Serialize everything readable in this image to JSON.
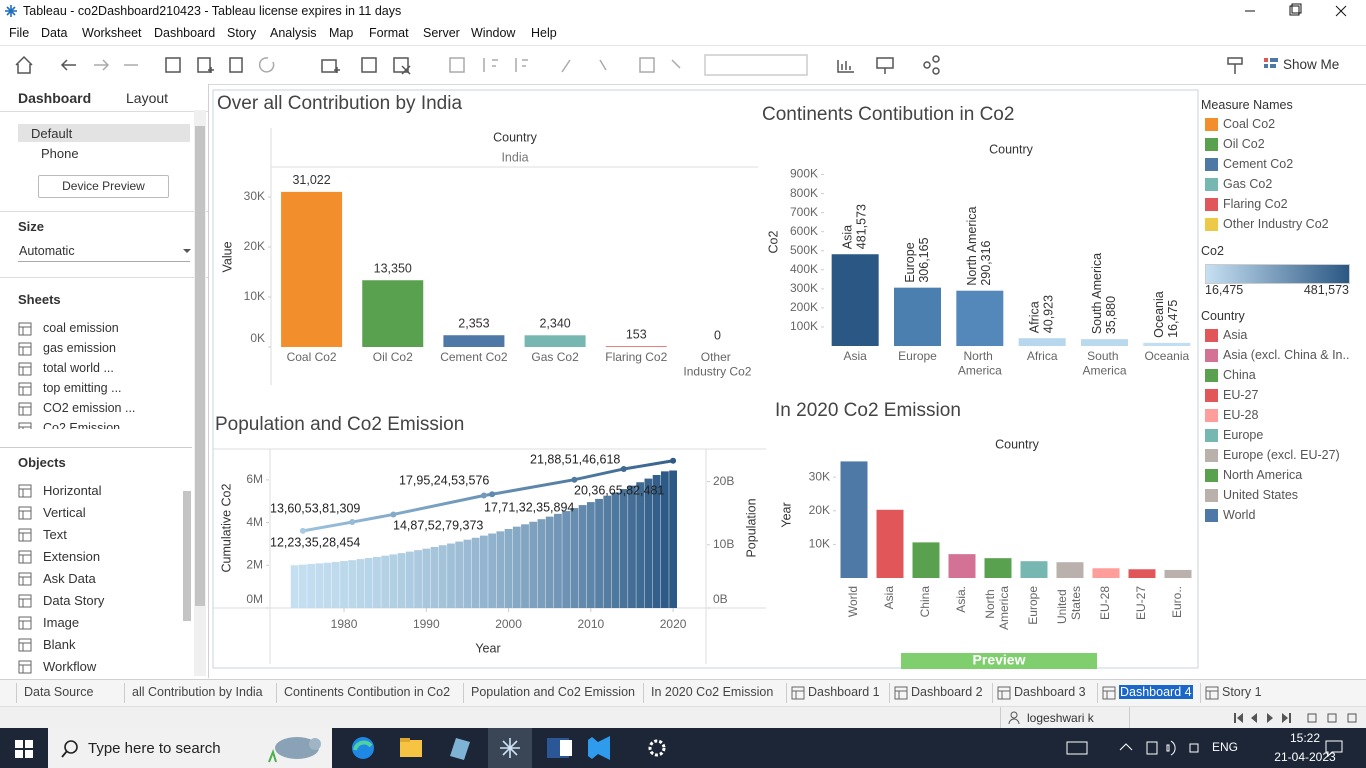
{
  "window": {
    "title": "Tableau - co2Dashboard210423 - Tableau license expires in 11 days"
  },
  "menu": [
    "File",
    "Data",
    "Worksheet",
    "Dashboard",
    "Story",
    "Analysis",
    "Map",
    "Format",
    "Server",
    "Window",
    "Help"
  ],
  "toolbar": {
    "show_me": "Show Me"
  },
  "side_panel": {
    "tabs": [
      "Dashboard",
      "Layout"
    ],
    "devices": [
      "Default",
      "Phone"
    ],
    "device_preview": "Device Preview",
    "size_title": "Size",
    "size_value": "Automatic",
    "sheets_title": "Sheets",
    "sheets": [
      "coal emission",
      "gas emission",
      "total world ...",
      "top emitting ...",
      "CO2 emission ...",
      "Co2 Emission"
    ],
    "objects_title": "Objects",
    "objects": [
      "Horizontal",
      "Vertical",
      "Text",
      "Extension",
      "Ask Data",
      "Data Story",
      "Image",
      "Blank",
      "Workflow"
    ]
  },
  "dashboard": {
    "charts": [
      {
        "type": "bar",
        "title": "Over all Contribution by India",
        "header": "Country",
        "subheader": "India",
        "y_label": "Value",
        "categories": [
          "Coal Co2",
          "Oil Co2",
          "Cement Co2",
          "Gas Co2",
          "Flaring Co2",
          "Other Industry Co2"
        ],
        "values": [
          31022,
          13350,
          2353,
          2340,
          153,
          0
        ],
        "value_labels": [
          "31,022",
          "13,350",
          "2,353",
          "2,340",
          "153",
          "0"
        ],
        "colors": [
          "#f28e2b",
          "#59a14f",
          "#4e79a7",
          "#76b7b2",
          "#e15759",
          "#edc948"
        ],
        "ylim": [
          0,
          36000
        ],
        "yticks": [
          {
            "value": 0,
            "label": "0K"
          },
          {
            "value": 10000,
            "label": "10K"
          },
          {
            "value": 20000,
            "label": "20K"
          },
          {
            "value": 30000,
            "label": "30K"
          }
        ]
      },
      {
        "type": "bar",
        "title": "Continents Contibution in Co2",
        "header": "Country",
        "y_label": "Co2",
        "categories": [
          "Asia",
          "Europe",
          "North America",
          "Africa",
          "South America",
          "Oceania"
        ],
        "values": [
          481573,
          306165,
          290316,
          40923,
          35880,
          16475
        ],
        "value_labels": [
          "481,573",
          "306,165",
          "290,316",
          "40,923",
          "35,880",
          "16,475"
        ],
        "colors": [
          "#2a5783",
          "#4a7fb0",
          "#5488bb",
          "#b6d7ee",
          "#b9d9ef",
          "#c3def1"
        ],
        "ylim": [
          0,
          950000
        ],
        "yticks": [
          {
            "value": 100000,
            "label": "100K"
          },
          {
            "value": 200000,
            "label": "200K"
          },
          {
            "value": 300000,
            "label": "300K"
          },
          {
            "value": 400000,
            "label": "400K"
          },
          {
            "value": 500000,
            "label": "500K"
          },
          {
            "value": 600000,
            "label": "600K"
          },
          {
            "value": 700000,
            "label": "700K"
          },
          {
            "value": 800000,
            "label": "800K"
          },
          {
            "value": 900000,
            "label": "900K"
          }
        ]
      },
      {
        "type": "bar_line",
        "title": "Population and Co2 Emission",
        "x_label": "Year",
        "y_label": "Cumulative Co2",
        "y2_label": "Population",
        "x": [
          1974,
          1975,
          1976,
          1977,
          1978,
          1979,
          1980,
          1981,
          1982,
          1983,
          1984,
          1985,
          1986,
          1987,
          1988,
          1989,
          1990,
          1991,
          1992,
          1993,
          1994,
          1995,
          1996,
          1997,
          1998,
          1999,
          2000,
          2001,
          2002,
          2003,
          2004,
          2005,
          2006,
          2007,
          2008,
          2009,
          2010,
          2011,
          2012,
          2013,
          2014,
          2015,
          2016,
          2017,
          2018,
          2019,
          2020
        ],
        "values": [
          2.0,
          2.03,
          2.06,
          2.09,
          2.12,
          2.16,
          2.2,
          2.24,
          2.29,
          2.34,
          2.39,
          2.45,
          2.51,
          2.57,
          2.64,
          2.71,
          2.78,
          2.86,
          2.94,
          3.02,
          3.11,
          3.2,
          3.29,
          3.39,
          3.49,
          3.59,
          3.7,
          3.81,
          3.92,
          4.04,
          4.16,
          4.28,
          4.41,
          4.54,
          4.68,
          4.82,
          4.96,
          5.11,
          5.26,
          5.41,
          5.57,
          5.73,
          5.89,
          6.06,
          6.23,
          6.4,
          6.44
        ],
        "color_range": [
          "#c3dff0",
          "#2c5985"
        ],
        "line": {
          "axis": "y2",
          "x": [
            1975,
            1981,
            1986,
            1997,
            1998,
            2008,
            2014,
            2020
          ],
          "values": [
            12.2,
            13.6,
            14.8,
            17.8,
            18.0,
            20.3,
            22.0,
            23.3
          ],
          "color_range": [
            "#a6cbe3",
            "#2c5985"
          ]
        },
        "annotations": [
          "13,60,53,81,309",
          "12,23,35,28,454",
          "17,95,24,53,576",
          "14,87,52,79,373",
          "21,88,51,46,618",
          "17,71,32,35,894",
          "20,36,65,82,481"
        ],
        "xlim": [
          1971,
          2024
        ],
        "xticks": [
          1980,
          1990,
          2000,
          2010,
          2020
        ],
        "ylim": [
          0,
          7.4
        ],
        "yticks": [
          {
            "value": 0,
            "label": "0M"
          },
          {
            "value": 2,
            "label": "2M"
          },
          {
            "value": 4,
            "label": "4M"
          },
          {
            "value": 6,
            "label": "6M"
          }
        ],
        "y2lim": [
          0,
          25
        ],
        "y2ticks": [
          {
            "value": 0,
            "label": "0B"
          },
          {
            "value": 10,
            "label": "10B"
          },
          {
            "value": 20,
            "label": "20B"
          }
        ]
      },
      {
        "type": "bar",
        "title": "In 2020 Co2 Emission",
        "header": "Country",
        "y_label": "Year",
        "categories": [
          "World",
          "Asia",
          "China",
          "Asia.",
          "North America",
          "Europe",
          "United States",
          "EU-28",
          "EU-27",
          "Euro.."
        ],
        "values": [
          34700,
          20300,
          10600,
          7100,
          5900,
          5000,
          4700,
          2900,
          2600,
          2400
        ],
        "colors": [
          "#4e79a7",
          "#e15759",
          "#59a14f",
          "#d37295",
          "#59a14f",
          "#76b7b2",
          "#bab0ac",
          "#ff9d9a",
          "#e15759",
          "#bab0ac"
        ],
        "ylim": [
          0,
          37500
        ],
        "yticks": [
          {
            "value": 10000,
            "label": "10K"
          },
          {
            "value": 20000,
            "label": "20K"
          },
          {
            "value": 30000,
            "label": "30K"
          }
        ]
      }
    ],
    "preview": "Preview"
  },
  "legend": {
    "measure_title": "Measure Names",
    "measures": [
      {
        "name": "Coal Co2",
        "color": "#f28e2b"
      },
      {
        "name": "Oil Co2",
        "color": "#59a14f"
      },
      {
        "name": "Cement Co2",
        "color": "#4e79a7"
      },
      {
        "name": "Gas Co2",
        "color": "#76b7b2"
      },
      {
        "name": "Flaring Co2",
        "color": "#e15759"
      },
      {
        "name": "Other Industry Co2",
        "color": "#edc948"
      }
    ],
    "co2_title": "Co2",
    "co2_colors": [
      "#c6e0f2",
      "#2a5783"
    ],
    "co2_labels": [
      "16,475",
      "481,573"
    ],
    "country_title": "Country",
    "countries": [
      {
        "name": "Asia",
        "color": "#e15759"
      },
      {
        "name": "Asia (excl. China & In..",
        "color": "#d37295"
      },
      {
        "name": "China",
        "color": "#59a14f"
      },
      {
        "name": "EU-27",
        "color": "#e15759"
      },
      {
        "name": "EU-28",
        "color": "#ff9d9a"
      },
      {
        "name": "Europe",
        "color": "#76b7b2"
      },
      {
        "name": "Europe (excl. EU-27)",
        "color": "#bab0ac"
      },
      {
        "name": "North America",
        "color": "#59a14f"
      },
      {
        "name": "United States",
        "color": "#bab0ac"
      },
      {
        "name": "World",
        "color": "#4e79a7"
      }
    ]
  },
  "sheet_tabs": [
    "Data Source",
    "all Contribution by India",
    "Continents Contibution in Co2",
    "Population and Co2 Emission",
    "In 2020 Co2 Emission",
    "Dashboard 1",
    "Dashboard 2",
    "Dashboard 3",
    "Dashboard 4",
    "Story 1"
  ],
  "status": {
    "user": "logeshwari k"
  },
  "taskbar": {
    "search": "Type here to search",
    "language": "ENG",
    "time": "15:22",
    "date": "21-04-2023"
  }
}
